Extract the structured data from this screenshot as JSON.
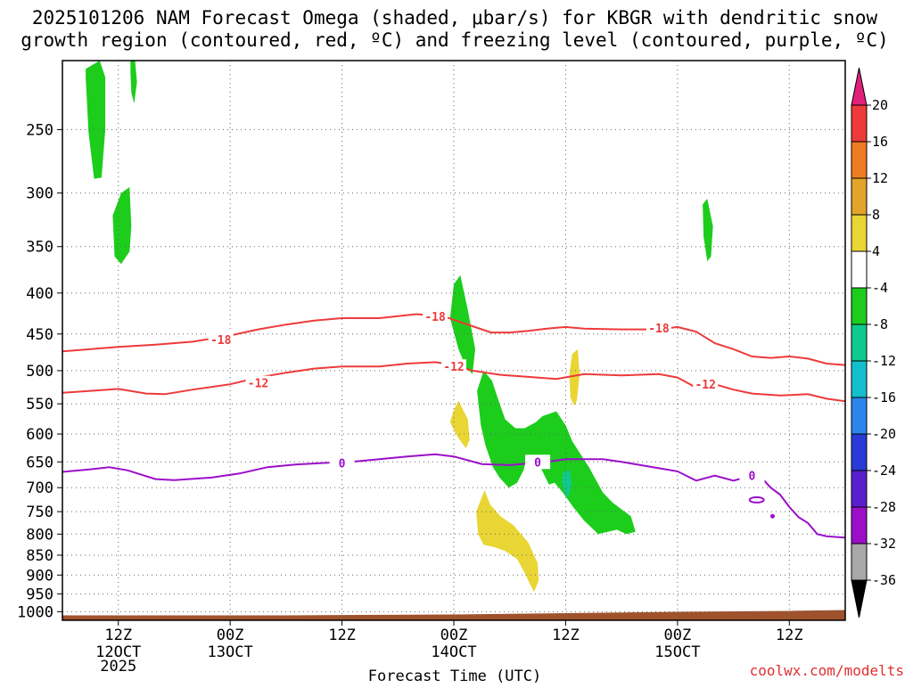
{
  "chart_data": {
    "type": "contour",
    "title": "2025101206 NAM Forecast Omega (shaded, μbar/s) for KBGR with dendritic snow growth region (contoured, red, ºC) and freezing level (contoured, purple, ºC)",
    "title_lines": [
      "2025101206 NAM Forecast Omega (shaded, μbar/s) for KBGR with dendritic snow",
      "growth region (contoured, red, ºC) and freezing level (contoured, purple, ºC)"
    ],
    "xlabel": "Forecast Time (UTC)",
    "ylabel": "",
    "watermark": "coolwx.com/modelts",
    "y_axis": {
      "unit": "hPa",
      "scale": "log-pressure",
      "range": [
        1025,
        205
      ],
      "ticks": [
        250,
        300,
        350,
        400,
        450,
        500,
        550,
        600,
        650,
        700,
        750,
        800,
        850,
        900,
        950,
        1000
      ]
    },
    "x_axis": {
      "range_hours": [
        6,
        90
      ],
      "ticks": [
        {
          "hour": 12,
          "label": "12Z",
          "sub": [
            "12OCT",
            "2025"
          ]
        },
        {
          "hour": 24,
          "label": "00Z",
          "sub": [
            "13OCT"
          ]
        },
        {
          "hour": 36,
          "label": "12Z",
          "sub": []
        },
        {
          "hour": 48,
          "label": "00Z",
          "sub": [
            "14OCT"
          ]
        },
        {
          "hour": 60,
          "label": "12Z",
          "sub": []
        },
        {
          "hour": 72,
          "label": "00Z",
          "sub": [
            "15OCT"
          ]
        },
        {
          "hour": 84,
          "label": "12Z",
          "sub": []
        }
      ]
    },
    "grid": true,
    "colorbar": {
      "levels": [
        {
          "label": "20",
          "color": "#e82b7a"
        },
        {
          "label": "16",
          "color": "#ee3a3a"
        },
        {
          "label": "12",
          "color": "#ef7b22"
        },
        {
          "label": "8",
          "color": "#e2a42a"
        },
        {
          "label": "4",
          "color": "#e9d634"
        },
        {
          "label": "-4",
          "color": "#ffffff"
        },
        {
          "label": "-8",
          "color": "#1ccd1c"
        },
        {
          "label": "-12",
          "color": "#10c98c"
        },
        {
          "label": "-16",
          "color": "#14bfcd"
        },
        {
          "label": "-20",
          "color": "#2a86ea"
        },
        {
          "label": "-24",
          "color": "#2a3ad6"
        },
        {
          "label": "-28",
          "color": "#5a1fcc"
        },
        {
          "label": "-32",
          "color": "#9b0fc9"
        },
        {
          "label": "-36",
          "color": "#a8a8a8"
        }
      ],
      "bottom_color": "#000000",
      "top_color": "#e0207a"
    },
    "contours": [
      {
        "name": "-18",
        "color": "#ee3a3a",
        "label": "-18",
        "points": [
          [
            6,
            473
          ],
          [
            8,
            471
          ],
          [
            12,
            467
          ],
          [
            16,
            464
          ],
          [
            20,
            460
          ],
          [
            24,
            452
          ],
          [
            27,
            444
          ],
          [
            30,
            438
          ],
          [
            33,
            433
          ],
          [
            36,
            430
          ],
          [
            40,
            430
          ],
          [
            44,
            425
          ],
          [
            47,
            428
          ],
          [
            48,
            432
          ],
          [
            50,
            440
          ],
          [
            52,
            448
          ],
          [
            54,
            448
          ],
          [
            56,
            446
          ],
          [
            58,
            443
          ],
          [
            60,
            441
          ],
          [
            62,
            443
          ],
          [
            66,
            444
          ],
          [
            70,
            444
          ],
          [
            72,
            441
          ],
          [
            74,
            447
          ],
          [
            76,
            462
          ],
          [
            78,
            470
          ],
          [
            80,
            480
          ],
          [
            82,
            482
          ],
          [
            84,
            480
          ],
          [
            86,
            483
          ],
          [
            88,
            490
          ],
          [
            90,
            492
          ]
        ],
        "label_positions": [
          [
            23,
            457
          ],
          [
            46,
            428
          ],
          [
            70,
            442
          ]
        ]
      },
      {
        "name": "-12",
        "color": "#ee3a3a",
        "label": "-12",
        "points": [
          [
            6,
            533
          ],
          [
            9,
            530
          ],
          [
            12,
            527
          ],
          [
            15,
            534
          ],
          [
            17,
            535
          ],
          [
            20,
            528
          ],
          [
            24,
            520
          ],
          [
            27,
            510
          ],
          [
            30,
            503
          ],
          [
            33,
            497
          ],
          [
            36,
            494
          ],
          [
            40,
            494
          ],
          [
            43,
            490
          ],
          [
            46,
            488
          ],
          [
            48,
            492
          ],
          [
            50,
            500
          ],
          [
            53,
            506
          ],
          [
            56,
            509
          ],
          [
            59,
            512
          ],
          [
            62,
            505
          ],
          [
            66,
            507
          ],
          [
            70,
            505
          ],
          [
            72,
            510
          ],
          [
            74,
            525
          ],
          [
            76,
            520
          ],
          [
            78,
            528
          ],
          [
            80,
            534
          ],
          [
            83,
            537
          ],
          [
            86,
            535
          ],
          [
            88,
            542
          ],
          [
            90,
            546
          ]
        ],
        "label_positions": [
          [
            27,
            518
          ],
          [
            48,
            494
          ],
          [
            75,
            520
          ]
        ]
      },
      {
        "name": "0",
        "color": "#9b0fc9",
        "label": "0",
        "points": [
          [
            6,
            669
          ],
          [
            9,
            664
          ],
          [
            11,
            660
          ],
          [
            13,
            666
          ],
          [
            16,
            683
          ],
          [
            18,
            685
          ],
          [
            22,
            680
          ],
          [
            25,
            672
          ],
          [
            28,
            660
          ],
          [
            31,
            655
          ],
          [
            34,
            652
          ],
          [
            37,
            650
          ],
          [
            40,
            645
          ],
          [
            43,
            640
          ],
          [
            46,
            636
          ],
          [
            48,
            640
          ],
          [
            51,
            654
          ],
          [
            54,
            656
          ],
          [
            58,
            650
          ],
          [
            60,
            645
          ],
          [
            64,
            645
          ],
          [
            66,
            650
          ],
          [
            70,
            662
          ],
          [
            72,
            668
          ],
          [
            74,
            686
          ],
          [
            76,
            676
          ],
          [
            78,
            686
          ],
          [
            80,
            676
          ],
          [
            81,
            680
          ],
          [
            82,
            700
          ],
          [
            83,
            714
          ],
          [
            84,
            740
          ],
          [
            85,
            762
          ],
          [
            86,
            775
          ],
          [
            87,
            800
          ],
          [
            88,
            805
          ],
          [
            90,
            808
          ]
        ],
        "label_positions": [
          [
            36,
            652
          ],
          [
            57,
            650
          ],
          [
            80,
            676
          ]
        ]
      }
    ],
    "shaded_regions": [
      {
        "name": "green-upper-1",
        "category": "-8",
        "color": "#1ccd1c",
        "points": [
          [
            8.5,
            210
          ],
          [
            10,
            205
          ],
          [
            10.6,
            215
          ],
          [
            10.6,
            250
          ],
          [
            10.2,
            287
          ],
          [
            9.4,
            288
          ],
          [
            8.8,
            252
          ],
          [
            8.5,
            215
          ]
        ]
      },
      {
        "name": "green-upper-2",
        "category": "-8",
        "color": "#1ccd1c",
        "points": [
          [
            13.3,
            205
          ],
          [
            13.8,
            205
          ],
          [
            14,
            218
          ],
          [
            13.7,
            232
          ],
          [
            13.4,
            225
          ],
          [
            13.3,
            212
          ]
        ]
      },
      {
        "name": "green-upper-3",
        "category": "-8",
        "color": "#1ccd1c",
        "points": [
          [
            11.4,
            320
          ],
          [
            12.3,
            300
          ],
          [
            13.2,
            295
          ],
          [
            13.4,
            330
          ],
          [
            13.2,
            355
          ],
          [
            12.3,
            368
          ],
          [
            11.6,
            360
          ]
        ]
      },
      {
        "name": "green-upper-4",
        "category": "-8",
        "color": "#1ccd1c",
        "points": [
          [
            74.7,
            310
          ],
          [
            75.2,
            305
          ],
          [
            75.8,
            330
          ],
          [
            75.6,
            360
          ],
          [
            75.2,
            365
          ],
          [
            74.8,
            340
          ]
        ]
      },
      {
        "name": "green-middle-1",
        "category": "-8",
        "color": "#1ccd1c",
        "points": [
          [
            47.6,
            430
          ],
          [
            48,
            390
          ],
          [
            48.7,
            380
          ],
          [
            49.5,
            420
          ],
          [
            50.3,
            470
          ],
          [
            50,
            505
          ],
          [
            49.3,
            495
          ],
          [
            48.5,
            470
          ]
        ]
      },
      {
        "name": "green-main",
        "category": "-8",
        "color": "#1ccd1c",
        "points": [
          [
            50.5,
            530
          ],
          [
            51.2,
            500
          ],
          [
            52.1,
            515
          ],
          [
            52.8,
            545
          ],
          [
            53.5,
            575
          ],
          [
            54.6,
            590
          ],
          [
            55.6,
            590
          ],
          [
            56.8,
            580
          ],
          [
            57.5,
            570
          ],
          [
            59,
            562
          ],
          [
            60,
            585
          ],
          [
            60.7,
            612
          ],
          [
            61.3,
            628
          ],
          [
            62.5,
            660
          ],
          [
            64,
            710
          ],
          [
            65,
            730
          ],
          [
            66,
            745
          ],
          [
            67,
            760
          ],
          [
            67.5,
            795
          ],
          [
            66.5,
            800
          ],
          [
            65.5,
            790
          ],
          [
            63.5,
            800
          ],
          [
            62,
            770
          ],
          [
            60.8,
            740
          ],
          [
            59.7,
            710
          ],
          [
            58.8,
            690
          ],
          [
            58.2,
            694
          ],
          [
            57.3,
            660
          ],
          [
            56.5,
            640
          ],
          [
            55.8,
            640
          ],
          [
            55.5,
            665
          ],
          [
            54.8,
            690
          ],
          [
            53.9,
            700
          ],
          [
            52.9,
            680
          ],
          [
            52.2,
            660
          ],
          [
            51.4,
            620
          ],
          [
            50.9,
            585
          ]
        ]
      },
      {
        "name": "teal-small",
        "category": "-12",
        "color": "#10c98c",
        "points": [
          [
            59.7,
            670
          ],
          [
            60.4,
            665
          ],
          [
            60.7,
            690
          ],
          [
            60.3,
            720
          ],
          [
            59.9,
            712
          ],
          [
            59.6,
            690
          ]
        ]
      },
      {
        "name": "yellow-1",
        "category": "4",
        "color": "#e9d634",
        "points": [
          [
            48,
            560
          ],
          [
            48.5,
            545
          ],
          [
            49.5,
            575
          ],
          [
            49.7,
            610
          ],
          [
            49.3,
            625
          ],
          [
            48.4,
            605
          ],
          [
            47.6,
            580
          ]
        ]
      },
      {
        "name": "yellow-2",
        "category": "4",
        "color": "#e9d634",
        "points": [
          [
            60.4,
            505
          ],
          [
            60.7,
            477
          ],
          [
            61.3,
            470
          ],
          [
            61.5,
            505
          ],
          [
            61.2,
            545
          ],
          [
            60.9,
            553
          ],
          [
            60.5,
            540
          ]
        ]
      },
      {
        "name": "yellow-3",
        "category": "4",
        "color": "#e9d634",
        "points": [
          [
            50.4,
            750
          ],
          [
            51.3,
            705
          ],
          [
            51.9,
            735
          ],
          [
            53,
            760
          ],
          [
            54.4,
            780
          ],
          [
            56,
            820
          ],
          [
            57,
            870
          ],
          [
            57.1,
            915
          ],
          [
            56.6,
            945
          ],
          [
            56.2,
            925
          ],
          [
            55.5,
            890
          ],
          [
            54.8,
            860
          ],
          [
            53.5,
            840
          ],
          [
            52.3,
            830
          ],
          [
            51.2,
            825
          ],
          [
            50.6,
            800
          ]
        ]
      }
    ],
    "terrain": {
      "color": "#a0522d",
      "pressure_hpa": 1008
    }
  }
}
